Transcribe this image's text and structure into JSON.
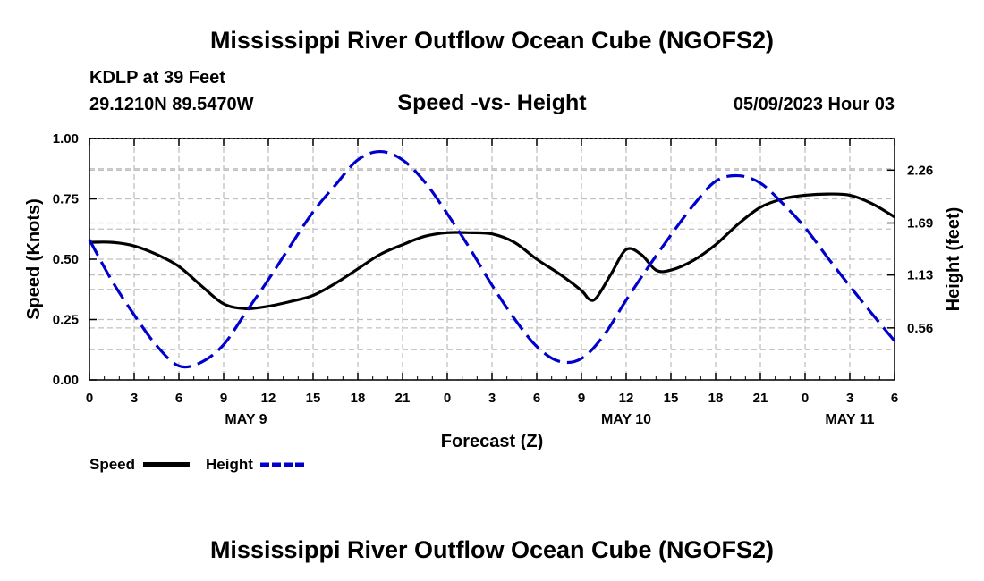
{
  "title": "Mississippi River Outflow Ocean Cube (NGOFS2)",
  "station": "KDLP at 39 Feet",
  "coords": "29.1210N  89.5470W",
  "subtitle": "Speed -vs- Height",
  "datetime": "05/09/2023 Hour 03",
  "footer_title": "Mississippi River Outflow Ocean Cube (NGOFS2)",
  "colors": {
    "speed": "#000000",
    "height": "#0000cc",
    "grid": "#c0c0c0"
  },
  "chart_data": {
    "type": "line",
    "title": "Speed -vs- Height",
    "xlabel": "Forecast (Z)",
    "ylabel": "Speed (Knots)",
    "y2label": "Height (feet)",
    "grid": true,
    "legend_position": "bottom-left",
    "x_unit": "hours since 05/09/2023 00Z",
    "xlim": [
      0,
      54
    ],
    "x_ticks": [
      0,
      3,
      6,
      9,
      12,
      15,
      18,
      21,
      24,
      27,
      30,
      33,
      36,
      39,
      42,
      45,
      48,
      51,
      54
    ],
    "x_tick_labels": [
      "0",
      "3",
      "6",
      "9",
      "12",
      "15",
      "18",
      "21",
      "0",
      "3",
      "6",
      "9",
      "12",
      "15",
      "18",
      "21",
      "0",
      "3",
      "6"
    ],
    "date_labels": [
      {
        "x": 10.5,
        "label": "MAY 9"
      },
      {
        "x": 36,
        "label": "MAY 10"
      },
      {
        "x": 51,
        "label": "MAY 11"
      }
    ],
    "ylim": [
      0,
      1.0
    ],
    "y_ticks": [
      0,
      0.25,
      0.5,
      0.75,
      1.0
    ],
    "y_tick_labels": [
      "0.00",
      "0.25",
      "0.50",
      "0.75",
      "1.00"
    ],
    "y2lim": [
      0.0,
      2.6
    ],
    "y2_ticks": [
      0.56,
      1.13,
      1.69,
      2.26
    ],
    "y2_tick_labels": [
      "0.56",
      "1.13",
      "1.69",
      "2.26"
    ],
    "series": [
      {
        "name": "Speed",
        "axis": "left",
        "style": "solid",
        "x": [
          0,
          1.5,
          3,
          4.5,
          6,
          7.5,
          9,
          10.5,
          12,
          13.5,
          15,
          16.5,
          18,
          19.5,
          21,
          22.5,
          24,
          25.5,
          27,
          28.5,
          30,
          31.5,
          33,
          33.5,
          34,
          35,
          36,
          37,
          38,
          39,
          40.5,
          42,
          43.5,
          45,
          46.5,
          48,
          49.5,
          51,
          52.5,
          54
        ],
        "y": [
          0.57,
          0.57,
          0.555,
          0.52,
          0.47,
          0.39,
          0.315,
          0.295,
          0.305,
          0.325,
          0.35,
          0.4,
          0.46,
          0.52,
          0.56,
          0.595,
          0.61,
          0.61,
          0.605,
          0.57,
          0.5,
          0.44,
          0.37,
          0.335,
          0.34,
          0.44,
          0.54,
          0.52,
          0.455,
          0.455,
          0.495,
          0.56,
          0.645,
          0.715,
          0.75,
          0.765,
          0.77,
          0.765,
          0.73,
          0.675
        ]
      },
      {
        "name": "Height",
        "axis": "right",
        "style": "dashed",
        "x": [
          0,
          1.5,
          3,
          4.5,
          6,
          7.5,
          9,
          10.5,
          12,
          13.5,
          15,
          16.5,
          18,
          19.5,
          21,
          22.5,
          24,
          25.5,
          27,
          28.5,
          30,
          31.5,
          33,
          34.5,
          36,
          37.5,
          39,
          40.5,
          42,
          43.5,
          45,
          46.5,
          48,
          49.5,
          51,
          52.5,
          54
        ],
        "y": [
          1.51,
          1.07,
          0.7,
          0.37,
          0.15,
          0.19,
          0.38,
          0.73,
          1.08,
          1.45,
          1.81,
          2.1,
          2.37,
          2.46,
          2.37,
          2.13,
          1.79,
          1.42,
          1.02,
          0.66,
          0.36,
          0.2,
          0.23,
          0.48,
          0.86,
          1.22,
          1.56,
          1.88,
          2.14,
          2.2,
          2.12,
          1.9,
          1.64,
          1.32,
          1.01,
          0.71,
          0.42
        ]
      }
    ],
    "legend": [
      {
        "name": "Speed",
        "style": "solid"
      },
      {
        "name": "Height",
        "style": "dashed"
      }
    ]
  }
}
